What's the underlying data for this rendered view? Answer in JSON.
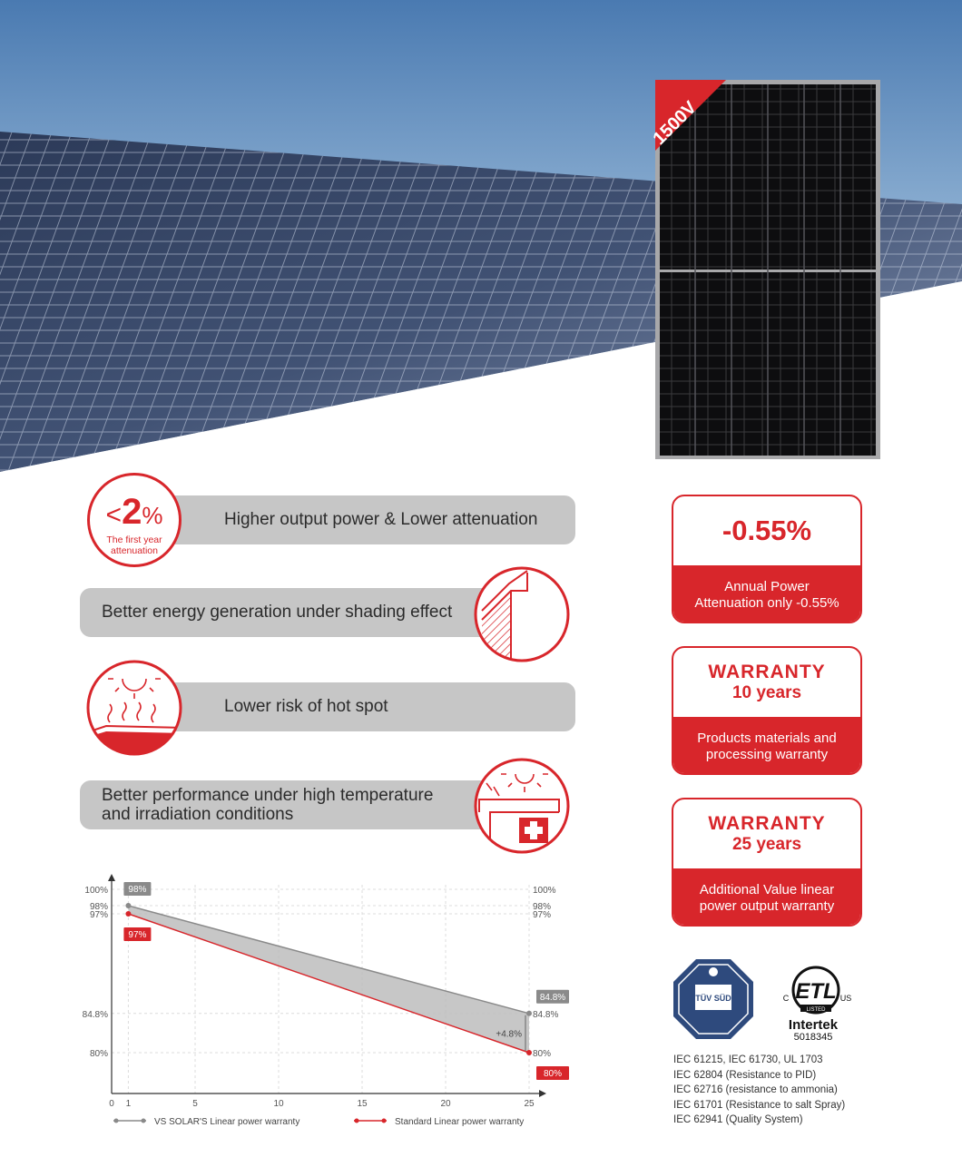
{
  "panel_badge": "1500V",
  "features": [
    {
      "text": "Higher output power & Lower attenuation"
    },
    {
      "text": "Better energy generation under shading effect"
    },
    {
      "text": "Lower risk of hot spot"
    },
    {
      "text": "Better performance under high temperature and irradiation conditions",
      "line1": "Better performance under high temperature",
      "line2": "and irradiation conditions"
    }
  ],
  "attenuation_badge": {
    "lt": "<",
    "number": "2",
    "pct": "%",
    "sub1": "The first year",
    "sub2": "attenuation"
  },
  "cards": [
    {
      "headline": "-0.55%",
      "line1": "Annual Power",
      "line2": "Attenuation only -0.55%"
    },
    {
      "headline": "WARRANTY",
      "sub": "10 years",
      "line1": "Products materials and",
      "line2": "processing warranty"
    },
    {
      "headline": "WARRANTY",
      "sub": "25 years",
      "line1": "Additional Value linear",
      "line2": "power output warranty"
    }
  ],
  "certs": {
    "tuv": "TÜV SÜD",
    "etl_mark": "ETL",
    "etl_listed": "LISTED",
    "etl_c": "C",
    "etl_us": "US",
    "intertek": "Intertek",
    "intertek_no": "5018345",
    "standards": [
      "IEC 61215, IEC 61730, UL 1703",
      "IEC 62804 (Resistance to PID)",
      "IEC 62716 (resistance to ammonia)",
      "IEC 61701 (Resistance to salt Spray)",
      "IEC 62941 (Quality System)"
    ]
  },
  "chart_data": {
    "type": "line",
    "x_ticks": [
      "0",
      "1",
      "5",
      "10",
      "15",
      "20",
      "25"
    ],
    "y_ticks": [
      "100%",
      "98%",
      "97%",
      "84.8%",
      "80%"
    ],
    "right_y_ticks": [
      "100%",
      "98%",
      "97%",
      "84.8%",
      "80%"
    ],
    "xlim": [
      0,
      25
    ],
    "ylim": [
      75,
      100
    ],
    "series": [
      {
        "name": "VS SOLAR'S Linear power warranty",
        "x": [
          1,
          25
        ],
        "y": [
          98,
          84.8
        ],
        "labels": [
          "98%",
          "84.8%"
        ],
        "color": "#8a8a8a"
      },
      {
        "name": "Standard Linear power warranty",
        "x": [
          1,
          25
        ],
        "y": [
          97,
          80
        ],
        "labels": [
          "97%",
          "80%"
        ],
        "color": "#d8262b"
      }
    ],
    "annotation": "+4.8%",
    "grid": true
  }
}
